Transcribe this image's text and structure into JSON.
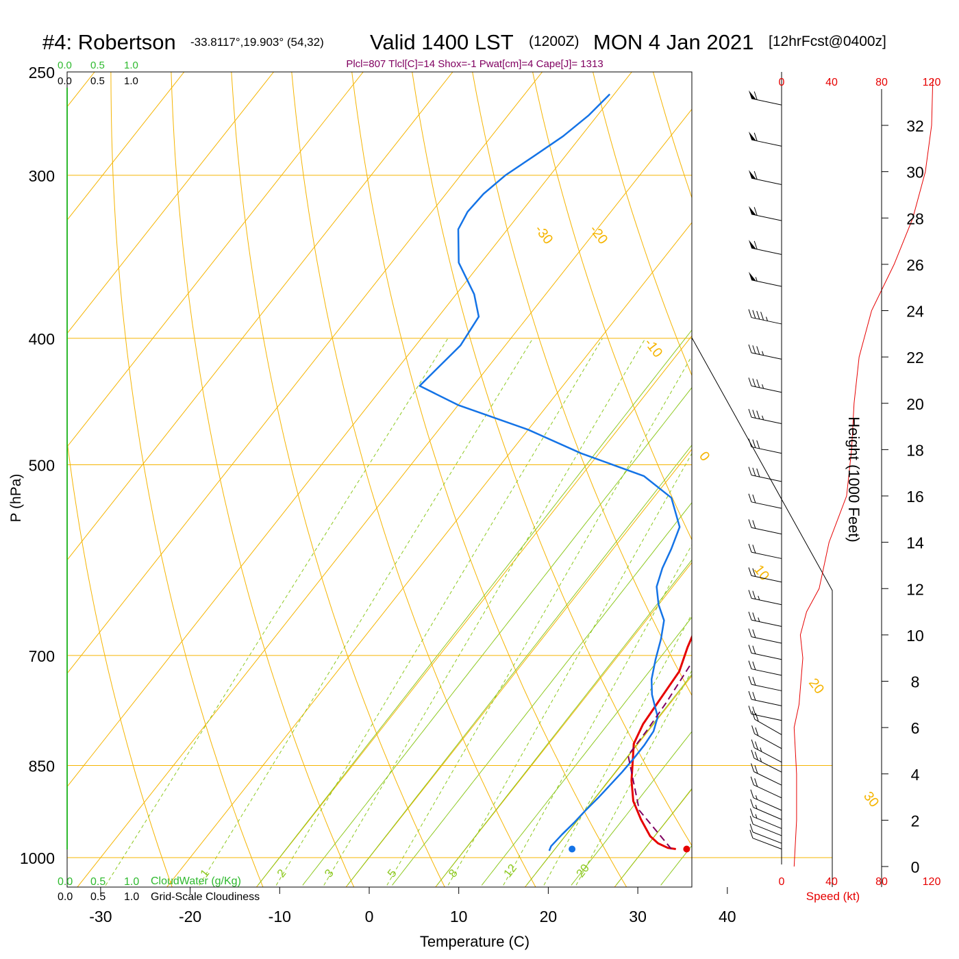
{
  "header": {
    "station": "#4: Robertson",
    "coords": "-33.8117°,19.903° (54,32)",
    "valid": "Valid 1400 LST",
    "zulu": "(1200Z)",
    "date": "MON 4 Jan 2021",
    "forecast": "[12hrFcst@0400z]",
    "indices": "Plcl=807 Tlcl[C]=14 Shox=-1 Pwat[cm]=4 Cape[J]= 1313"
  },
  "labels": {
    "cloudwater": "CloudWater (g/Kg)",
    "cloudiness": "Grid-Scale Cloudiness",
    "speed": "Speed (kt)",
    "height": "Height (1000 Feet)",
    "pressure": "P (hPa)",
    "temperature": "Temperature (C)"
  },
  "scales": {
    "cloud_ticks": [
      "0.0",
      "0.5",
      "1.0"
    ],
    "cloud_ticks_bottom": [
      "0.0",
      "0.5",
      "1.0"
    ],
    "speed_ticks": [
      "0",
      "40",
      "80",
      "120"
    ]
  },
  "colors": {
    "isotherm": "#f5b400",
    "dry_adiabat": "#f5b400",
    "moist_adiabat": "#8cc81e",
    "mixing_ratio": "#8cc81e",
    "temperature": "#e60000",
    "dewpoint": "#1473e6",
    "parcel": "#800060",
    "cloud_axis": "#2db92d",
    "speed": "#e60000"
  },
  "chart_data": {
    "type": "line",
    "title": "#4: Robertson",
    "xlabel": "Temperature (C)",
    "ylabel": "P (hPa)",
    "x_ticks": [
      -30,
      -20,
      -10,
      0,
      10,
      20,
      30,
      40
    ],
    "y_ticks": [
      250,
      300,
      400,
      500,
      700,
      850,
      1000
    ],
    "height_ticks": [
      0,
      2,
      4,
      6,
      8,
      10,
      12,
      14,
      16,
      18,
      20,
      22,
      24,
      26,
      28,
      30,
      32
    ],
    "isotherm_labels": [
      -30,
      -20,
      -10,
      0,
      10,
      20,
      30
    ],
    "mixing_ratio_labels": [
      1,
      2,
      3,
      5,
      8,
      12,
      20
    ],
    "series": [
      {
        "name": "Temperature",
        "points": [
          [
            33.5,
            985
          ],
          [
            32.5,
            983
          ],
          [
            31,
            975
          ],
          [
            29.5,
            963
          ],
          [
            27,
            935
          ],
          [
            24.5,
            905
          ],
          [
            22.5,
            873
          ],
          [
            21,
            845
          ],
          [
            19.5,
            818
          ],
          [
            18.8,
            790
          ],
          [
            18.5,
            755
          ],
          [
            18.2,
            720
          ],
          [
            17,
            690
          ],
          [
            15.8,
            655
          ],
          [
            14.5,
            625
          ],
          [
            14,
            600
          ],
          [
            13.8,
            575
          ],
          [
            13.5,
            545
          ],
          [
            12.5,
            510
          ],
          [
            11.8,
            485
          ],
          [
            10.8,
            460
          ],
          [
            9.8,
            435
          ],
          [
            8.6,
            410
          ],
          [
            7.5,
            380
          ],
          [
            6.3,
            350
          ],
          [
            4.5,
            325
          ],
          [
            3,
            300
          ],
          [
            1.5,
            285
          ],
          [
            0,
            270
          ],
          [
            -1.2,
            260
          ]
        ]
      },
      {
        "name": "Dewpoint",
        "points": [
          [
            19.5,
            988
          ],
          [
            19.3,
            980
          ],
          [
            19.5,
            960
          ],
          [
            19.8,
            940
          ],
          [
            20,
            920
          ],
          [
            20.3,
            900
          ],
          [
            20.5,
            880
          ],
          [
            20.7,
            860
          ],
          [
            20.8,
            840
          ],
          [
            20.8,
            820
          ],
          [
            20.6,
            800
          ],
          [
            19.8,
            780
          ],
          [
            18.5,
            765
          ],
          [
            17.2,
            750
          ],
          [
            15.8,
            730
          ],
          [
            14.5,
            705
          ],
          [
            13.3,
            680
          ],
          [
            12,
            658
          ],
          [
            10,
            640
          ],
          [
            8.2,
            620
          ],
          [
            7.2,
            600
          ],
          [
            6.5,
            580
          ],
          [
            5.5,
            558
          ],
          [
            2,
            530
          ],
          [
            -3,
            510
          ],
          [
            -12,
            490
          ],
          [
            -20,
            470
          ],
          [
            -30,
            450
          ],
          [
            -36,
            435
          ],
          [
            -35,
            405
          ],
          [
            -35.5,
            385
          ],
          [
            -38,
            370
          ],
          [
            -42.5,
            350
          ],
          [
            -45.5,
            330
          ],
          [
            -46,
            320
          ],
          [
            -45.8,
            310
          ],
          [
            -45,
            300
          ],
          [
            -43.5,
            290
          ],
          [
            -42,
            280
          ],
          [
            -41,
            270
          ],
          [
            -40.5,
            260
          ]
        ]
      },
      {
        "name": "Parcel",
        "points": [
          [
            33,
            985
          ],
          [
            26,
            920
          ],
          [
            19.9,
            835
          ],
          [
            19.8,
            800
          ],
          [
            19.5,
            760
          ],
          [
            18.7,
            700
          ],
          [
            17.5,
            650
          ],
          [
            16,
            600
          ],
          [
            14.5,
            555
          ],
          [
            13,
            510
          ],
          [
            11.8,
            485
          ],
          [
            10.8,
            460
          ],
          [
            9.8,
            440
          ],
          [
            8.5,
            410
          ],
          [
            7,
            385
          ],
          [
            5.8,
            365
          ],
          [
            4.3,
            340
          ],
          [
            2,
            315
          ],
          [
            0,
            295
          ],
          [
            -1.5,
            280
          ],
          [
            -2.3,
            265
          ],
          [
            -2.5,
            258
          ]
        ]
      }
    ],
    "surface": {
      "temperature": 34.7,
      "dewpoint": 21.9,
      "pressure": 985
    },
    "winds": [
      {
        "p": 985,
        "spd": 10
      },
      {
        "p": 975,
        "spd": 10
      },
      {
        "p": 962,
        "spd": 10
      },
      {
        "p": 950,
        "spd": 15
      },
      {
        "p": 935,
        "spd": 15
      },
      {
        "p": 920,
        "spd": 15
      },
      {
        "p": 900,
        "spd": 20
      },
      {
        "p": 880,
        "spd": 20
      },
      {
        "p": 860,
        "spd": 25
      },
      {
        "p": 845,
        "spd": 25
      },
      {
        "p": 825,
        "spd": 20
      },
      {
        "p": 805,
        "spd": 20
      },
      {
        "p": 785,
        "spd": 20
      },
      {
        "p": 765,
        "spd": 20
      },
      {
        "p": 745,
        "spd": 20
      },
      {
        "p": 725,
        "spd": 20
      },
      {
        "p": 705,
        "spd": 20
      },
      {
        "p": 685,
        "spd": 20
      },
      {
        "p": 665,
        "spd": 25
      },
      {
        "p": 640,
        "spd": 25
      },
      {
        "p": 615,
        "spd": 20
      },
      {
        "p": 590,
        "spd": 20
      },
      {
        "p": 565,
        "spd": 20
      },
      {
        "p": 540,
        "spd": 20
      },
      {
        "p": 515,
        "spd": 30
      },
      {
        "p": 490,
        "spd": 30
      },
      {
        "p": 465,
        "spd": 35
      },
      {
        "p": 440,
        "spd": 35
      },
      {
        "p": 415,
        "spd": 35
      },
      {
        "p": 390,
        "spd": 45
      },
      {
        "p": 365,
        "spd": 55
      },
      {
        "p": 345,
        "spd": 60
      },
      {
        "p": 325,
        "spd": 60
      },
      {
        "p": 305,
        "spd": 60
      },
      {
        "p": 285,
        "spd": 60
      },
      {
        "p": 265,
        "spd": 60
      }
    ],
    "speed_profile": [
      [
        0,
        10
      ],
      [
        2,
        12
      ],
      [
        4,
        12
      ],
      [
        6,
        10
      ],
      [
        7,
        14
      ],
      [
        9,
        17
      ],
      [
        10,
        15
      ],
      [
        11,
        20
      ],
      [
        12,
        30
      ],
      [
        14,
        38
      ],
      [
        16,
        52
      ],
      [
        18,
        56
      ],
      [
        20,
        58
      ],
      [
        22,
        62
      ],
      [
        24,
        72
      ],
      [
        26,
        90
      ],
      [
        28,
        105
      ],
      [
        30,
        115
      ],
      [
        32,
        120
      ],
      [
        34,
        121
      ]
    ]
  }
}
